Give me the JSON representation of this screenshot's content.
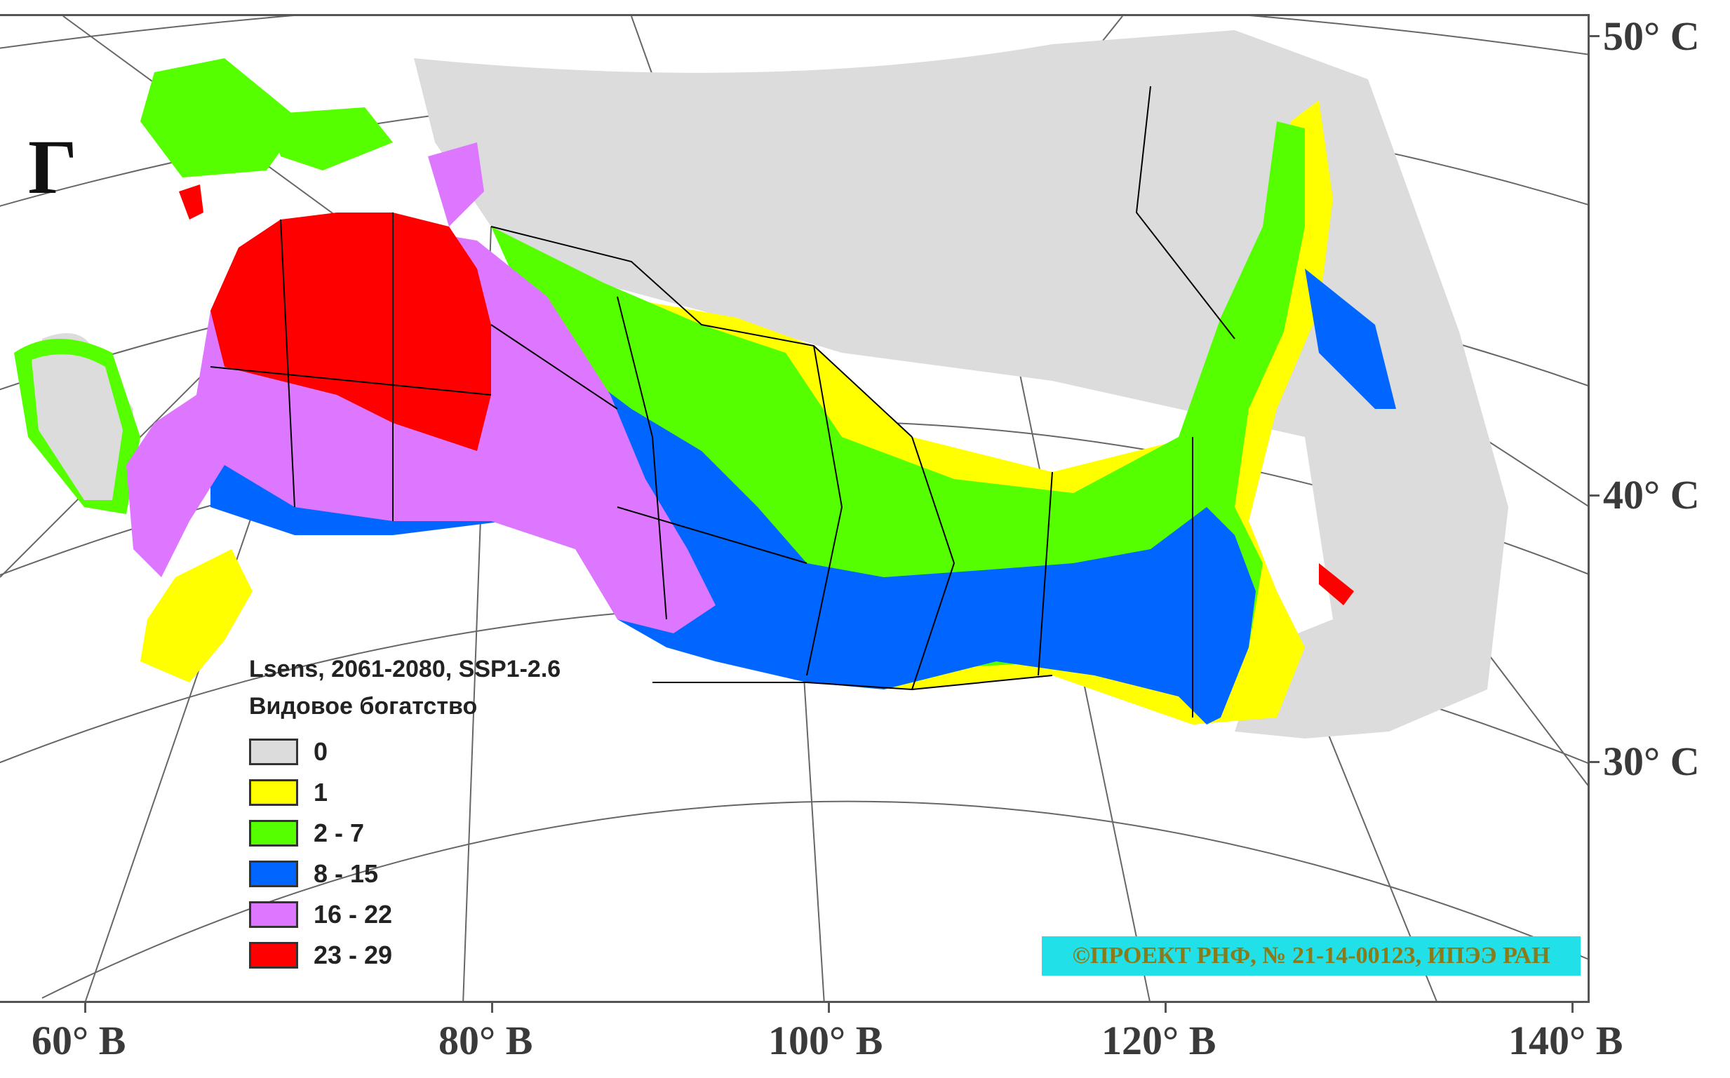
{
  "panel_letter": "Г",
  "legend": {
    "title_model": "Lsens, 2061-2080, SSP1-2.6",
    "title_variable": "Видовое богатство",
    "classes": [
      {
        "label": "0",
        "color": "#dcdcdc"
      },
      {
        "label": "1",
        "color": "#ffff00"
      },
      {
        "label": "2 - 7",
        "color": "#55ff00"
      },
      {
        "label": "8 - 15",
        "color": "#0066ff"
      },
      {
        "label": "16 - 22",
        "color": "#dd77ff"
      },
      {
        "label": "23 - 29",
        "color": "#ff0000"
      }
    ]
  },
  "latitude_labels": [
    "50° С",
    "40° С",
    "30° С"
  ],
  "longitude_labels": [
    "60° В",
    "80° В",
    "100° В",
    "120° В",
    "140° В"
  ],
  "credit": "©ПРОЕКТ РНФ, № 21-14-00123, ИПЭЭ РАН"
}
